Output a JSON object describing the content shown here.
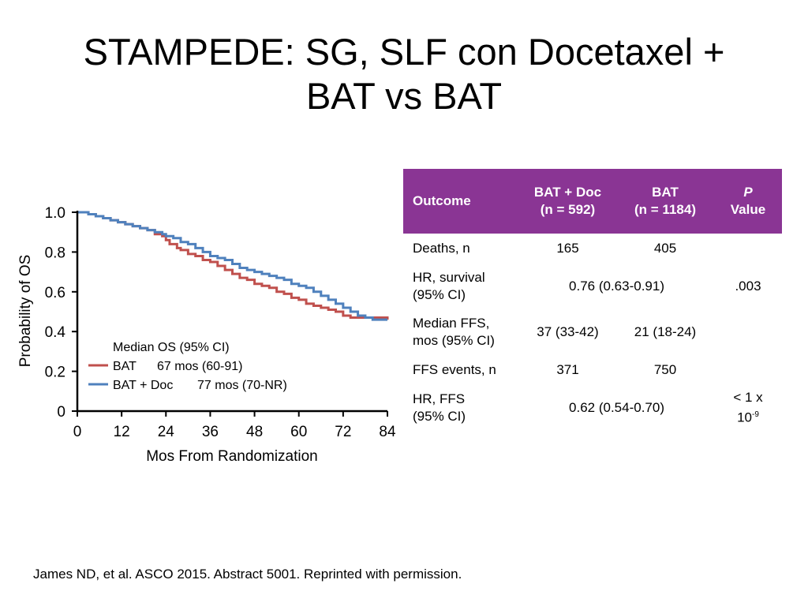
{
  "slide": {
    "title_line1": "STAMPEDE: SG, SLF con Docetaxel +",
    "title_line2": "BAT vs BAT",
    "footnote": "James ND, et al. ASCO 2015. Abstract 5001. Reprinted with permission."
  },
  "chart_data": {
    "type": "line",
    "title": "",
    "xlabel": "Mos From Randomization",
    "ylabel": "Probability of OS",
    "xlim": [
      0,
      84
    ],
    "ylim": [
      0,
      1.0
    ],
    "x_ticks": [
      "0",
      "12",
      "24",
      "36",
      "48",
      "60",
      "72",
      "84"
    ],
    "y_ticks": [
      "0",
      "0.2",
      "0.4",
      "0.6",
      "0.8",
      "1.0"
    ],
    "grid": false,
    "legend": {
      "title": "Median OS (95% CI)",
      "placement": "lower-left",
      "entries": [
        {
          "label": "BAT",
          "value": "67 mos (60-91)",
          "color": "#c0504d"
        },
        {
          "label": "BAT + Doc",
          "value": "77 mos (70-NR)",
          "color": "#4f81bd"
        }
      ]
    },
    "series": [
      {
        "name": "BAT",
        "color": "#c0504d",
        "step": true,
        "x": [
          0,
          3,
          5,
          7,
          9,
          11,
          13,
          15,
          17,
          19,
          21,
          23,
          24,
          25,
          27,
          28,
          30,
          32,
          34,
          36,
          38,
          40,
          42,
          44,
          46,
          48,
          50,
          52,
          54,
          56,
          58,
          60,
          62,
          64,
          66,
          68,
          70,
          72,
          74,
          76,
          78,
          80,
          82,
          84
        ],
        "y": [
          1.0,
          0.99,
          0.98,
          0.97,
          0.96,
          0.95,
          0.94,
          0.93,
          0.92,
          0.91,
          0.89,
          0.88,
          0.86,
          0.84,
          0.82,
          0.81,
          0.79,
          0.78,
          0.76,
          0.75,
          0.73,
          0.71,
          0.69,
          0.67,
          0.66,
          0.64,
          0.63,
          0.62,
          0.6,
          0.59,
          0.57,
          0.56,
          0.54,
          0.53,
          0.52,
          0.51,
          0.5,
          0.48,
          0.47,
          0.47,
          0.47,
          0.47,
          0.47,
          0.46
        ]
      },
      {
        "name": "BAT + Doc",
        "color": "#4f81bd",
        "step": true,
        "x": [
          0,
          3,
          5,
          7,
          9,
          11,
          13,
          15,
          17,
          19,
          21,
          23,
          24,
          26,
          28,
          30,
          32,
          34,
          36,
          38,
          40,
          42,
          44,
          46,
          48,
          50,
          52,
          54,
          56,
          58,
          60,
          62,
          64,
          66,
          68,
          70,
          72,
          74,
          76,
          78,
          80,
          82,
          84
        ],
        "y": [
          1.0,
          0.99,
          0.98,
          0.97,
          0.96,
          0.95,
          0.94,
          0.93,
          0.92,
          0.91,
          0.9,
          0.89,
          0.88,
          0.87,
          0.85,
          0.84,
          0.82,
          0.8,
          0.78,
          0.77,
          0.76,
          0.74,
          0.72,
          0.71,
          0.7,
          0.69,
          0.68,
          0.67,
          0.66,
          0.64,
          0.63,
          0.62,
          0.6,
          0.58,
          0.56,
          0.54,
          0.52,
          0.5,
          0.48,
          0.47,
          0.46,
          0.46,
          0.46
        ]
      }
    ]
  },
  "table": {
    "header": {
      "outcome": "Outcome",
      "doc_line1": "BAT + Doc",
      "doc_line2": "(n = 592)",
      "bat_line1": "BAT",
      "bat_line2": "(n = 1184)",
      "p_line1": "P",
      "p_line2": "Value"
    },
    "rows": {
      "deaths": {
        "label": "Deaths, n",
        "doc": "165",
        "bat": "405"
      },
      "hr_survival": {
        "label_line1": "HR, survival",
        "label_line2": "(95% CI)",
        "value": "0.76 (0.63-0.91)",
        "p": ".003"
      },
      "median_ffs": {
        "label_line1": "Median FFS,",
        "label_line2": "mos (95% CI)",
        "doc": "37 (33-42)",
        "bat": "21 (18-24)"
      },
      "ffs_events": {
        "label": "FFS events, n",
        "doc": "371",
        "bat": "750"
      },
      "hr_ffs": {
        "label_line1": "HR, FFS",
        "label_line2": "(95% CI)",
        "value": "0.62 (0.54-0.70)",
        "p_line1": "< 1 x",
        "p_base": "10",
        "p_exp": "-9"
      }
    }
  }
}
